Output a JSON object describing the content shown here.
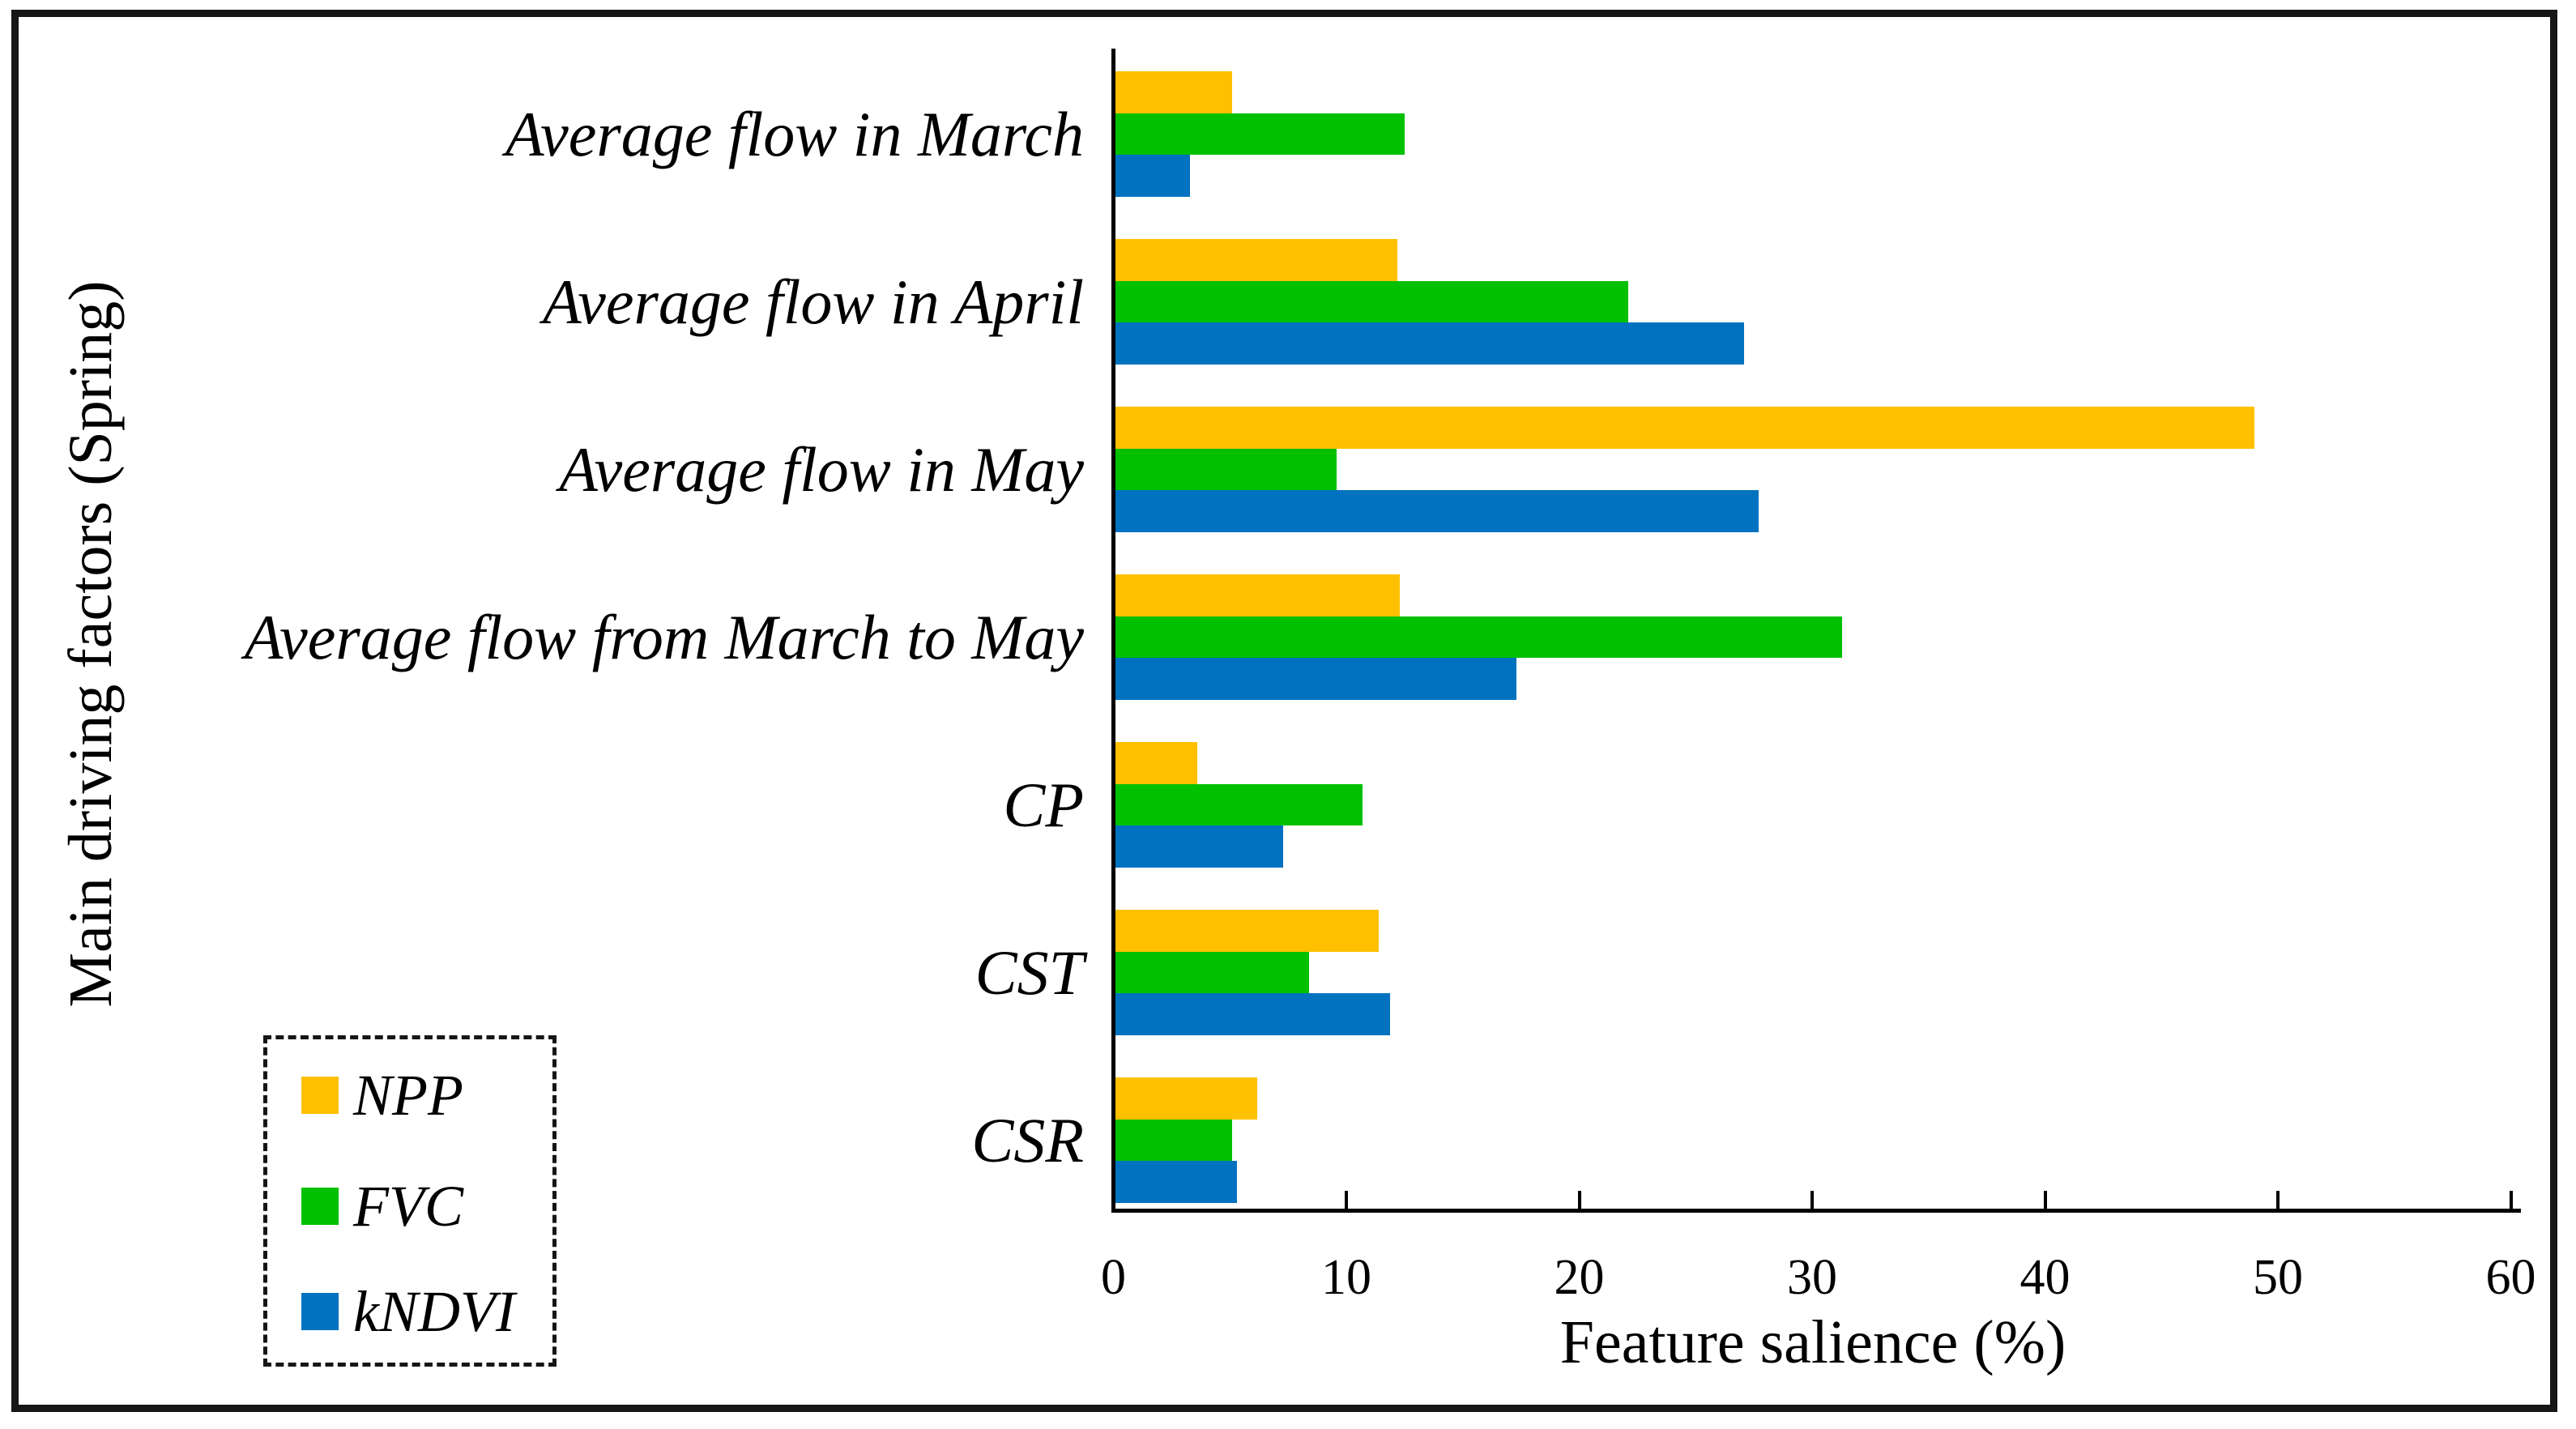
{
  "figure": {
    "background": "#ffffff",
    "border_color": "#161616",
    "axis_color": "#000000"
  },
  "chart_data": {
    "type": "bar",
    "orientation": "horizontal",
    "xlabel": "Feature salience (%)",
    "ylabel": "Main driving factors (Spring)",
    "xlim": [
      0,
      60
    ],
    "xticks": [
      0,
      10,
      20,
      30,
      40,
      50,
      60
    ],
    "grid": false,
    "legend_position": "lower-left",
    "categories": [
      "Average flow in March",
      "Average flow in April",
      "Average flow in May",
      "Average flow from March to May",
      "CP",
      "CST",
      "CSR"
    ],
    "series": [
      {
        "name": "NPP",
        "color": "#FFC000",
        "values": [
          5.0,
          12.1,
          48.9,
          12.2,
          3.5,
          11.3,
          6.1
        ]
      },
      {
        "name": "FVC",
        "color": "#00C000",
        "values": [
          12.4,
          22.0,
          9.5,
          31.2,
          10.6,
          8.3,
          5.0
        ]
      },
      {
        "name": "kNDVI",
        "color": "#0072C0",
        "values": [
          3.2,
          27.0,
          27.6,
          17.2,
          7.2,
          11.8,
          5.2
        ]
      }
    ]
  }
}
